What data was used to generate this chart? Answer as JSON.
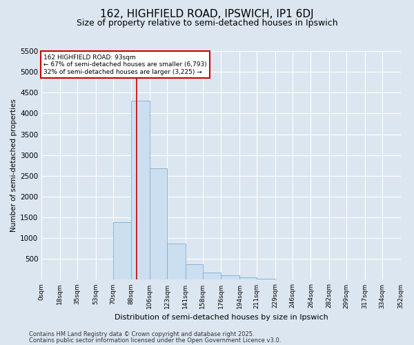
{
  "title_line1": "162, HIGHFIELD ROAD, IPSWICH, IP1 6DJ",
  "title_line2": "Size of property relative to semi-detached houses in Ipswich",
  "xlabel": "Distribution of semi-detached houses by size in Ipswich",
  "ylabel": "Number of semi-detached properties",
  "footer_line1": "Contains HM Land Registry data © Crown copyright and database right 2025.",
  "footer_line2": "Contains public sector information licensed under the Open Government Licence v3.0.",
  "bin_labels": [
    "0sqm",
    "18sqm",
    "35sqm",
    "53sqm",
    "70sqm",
    "88sqm",
    "106sqm",
    "123sqm",
    "141sqm",
    "158sqm",
    "176sqm",
    "194sqm",
    "211sqm",
    "229sqm",
    "246sqm",
    "264sqm",
    "282sqm",
    "299sqm",
    "317sqm",
    "334sqm",
    "352sqm"
  ],
  "bin_edges": [
    0,
    18,
    35,
    53,
    70,
    88,
    106,
    123,
    141,
    158,
    176,
    194,
    211,
    229,
    246,
    264,
    282,
    299,
    317,
    334,
    352
  ],
  "bar_values": [
    0,
    0,
    0,
    0,
    1390,
    4300,
    2680,
    870,
    375,
    170,
    115,
    55,
    25,
    15,
    8,
    5,
    3,
    2,
    1,
    1
  ],
  "bar_color": "#ccdff0",
  "bar_edge_color": "#7aadd4",
  "property_size": 93,
  "vline_color": "#cc0000",
  "annotation_text": "162 HIGHFIELD ROAD: 93sqm\n← 67% of semi-detached houses are smaller (6,793)\n32% of semi-detached houses are larger (3,225) →",
  "annotation_box_color": "#ffffff",
  "annotation_box_edge": "#cc0000",
  "ylim": [
    0,
    5500
  ],
  "yticks": [
    0,
    500,
    1000,
    1500,
    2000,
    2500,
    3000,
    3500,
    4000,
    4500,
    5000,
    5500
  ],
  "background_color": "#dce6f0",
  "plot_background": "#dce6f0",
  "grid_color": "#ffffff",
  "title_fontsize": 11,
  "subtitle_fontsize": 9
}
